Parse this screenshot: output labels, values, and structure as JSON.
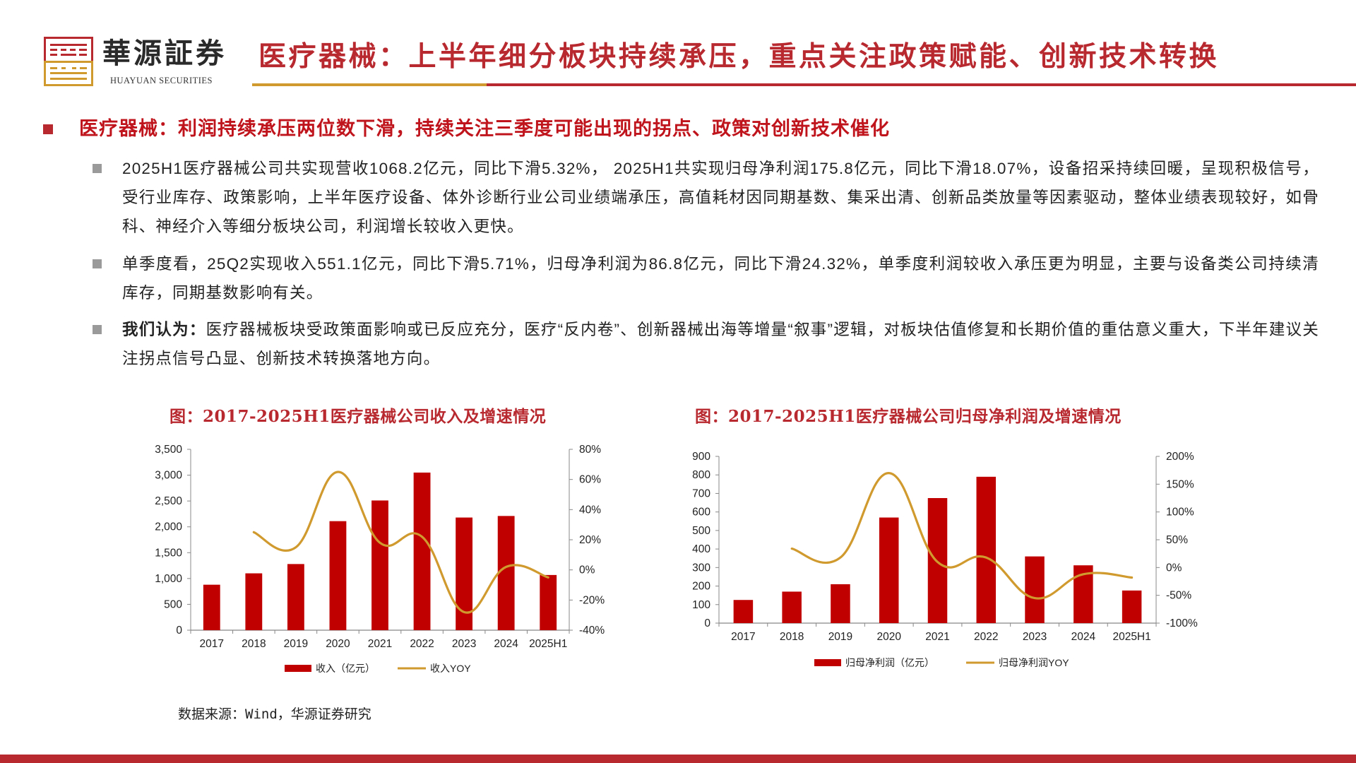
{
  "header": {
    "logo_cn": "華源証券",
    "logo_en": "HUAYUAN SECURITIES",
    "title": "医疗器械：上半年细分板块持续承压，重点关注政策赋能、创新技术转换",
    "colors": {
      "brand_red": "#b8282f",
      "brand_gold": "#d09a2f"
    }
  },
  "section": {
    "headline": "医疗器械：利润持续承压两位数下滑，持续关注三季度可能出现的拐点、政策对创新技术催化",
    "bullets": [
      {
        "lead": "",
        "text": "2025H1医疗器械公司共实现营收1068.2亿元，同比下滑5.32%， 2025H1共实现归母净利润175.8亿元，同比下滑18.07%，设备招采持续回暖，呈现积极信号，受行业库存、政策影响，上半年医疗设备、体外诊断行业公司业绩端承压，高值耗材因同期基数、集采出清、创新品类放量等因素驱动，整体业绩表现较好，如骨科、神经介入等细分板块公司，利润增长较收入更快。"
      },
      {
        "lead": "",
        "text": "单季度看，25Q2实现收入551.1亿元，同比下滑5.71%，归母净利润为86.8亿元，同比下滑24.32%，单季度利润较收入承压更为明显，主要与设备类公司持续清库存，同期基数影响有关。"
      },
      {
        "lead": "我们认为：",
        "text": "医疗器械板块受政策面影响或已反应充分，医疗“反内卷”、创新器械出海等增量“叙事”逻辑，对板块估值修复和长期价值的重估意义重大，下半年建议关注拐点信号凸显、创新技术转换落地方向。"
      }
    ]
  },
  "source": "数据来源：Wind，华源证券研究",
  "chart_data": [
    {
      "type": "bar+line",
      "title": "图：2017-2025H1医疗器械公司收入及增速情况",
      "categories": [
        "2017",
        "2018",
        "2019",
        "2020",
        "2021",
        "2022",
        "2023",
        "2024",
        "2025H1"
      ],
      "series": [
        {
          "name": "收入（亿元）",
          "type": "bar",
          "axis": "left",
          "color": "#c00000",
          "values": [
            880,
            1100,
            1280,
            2110,
            2510,
            3050,
            2180,
            2210,
            1068
          ]
        },
        {
          "name": "收入YOY",
          "type": "line",
          "axis": "right",
          "color": "#d09a2f",
          "values": [
            null,
            25,
            15,
            65,
            18,
            22,
            -28,
            2,
            -5
          ]
        }
      ],
      "y_left": {
        "min": 0,
        "max": 3500,
        "ticks": [
          "0",
          "500",
          "1,000",
          "1,500",
          "2,000",
          "2,500",
          "3,000",
          "3,500"
        ]
      },
      "y_right": {
        "min": -40,
        "max": 80,
        "ticks": [
          "-40%",
          "-20%",
          "0%",
          "20%",
          "40%",
          "60%",
          "80%"
        ]
      },
      "legend_position": "bottom",
      "grid": false
    },
    {
      "type": "bar+line",
      "title": "图：2017-2025H1医疗器械公司归母净利润及增速情况",
      "categories": [
        "2017",
        "2018",
        "2019",
        "2020",
        "2021",
        "2022",
        "2023",
        "2024",
        "2025H1"
      ],
      "series": [
        {
          "name": "归母净利润（亿元）",
          "type": "bar",
          "axis": "left",
          "color": "#c00000",
          "values": [
            125,
            170,
            210,
            570,
            675,
            790,
            360,
            312,
            176
          ]
        },
        {
          "name": "归母净利润YOY",
          "type": "line",
          "axis": "right",
          "color": "#d09a2f",
          "values": [
            null,
            34,
            18,
            170,
            10,
            18,
            -55,
            -12,
            -18
          ]
        }
      ],
      "y_left": {
        "min": 0,
        "max": 900,
        "ticks": [
          "0",
          "100",
          "200",
          "300",
          "400",
          "500",
          "600",
          "700",
          "800",
          "900"
        ]
      },
      "y_right": {
        "min": -100,
        "max": 200,
        "ticks": [
          "-100%",
          "-50%",
          "0%",
          "50%",
          "100%",
          "150%",
          "200%"
        ]
      },
      "legend_position": "bottom",
      "grid": false
    }
  ]
}
